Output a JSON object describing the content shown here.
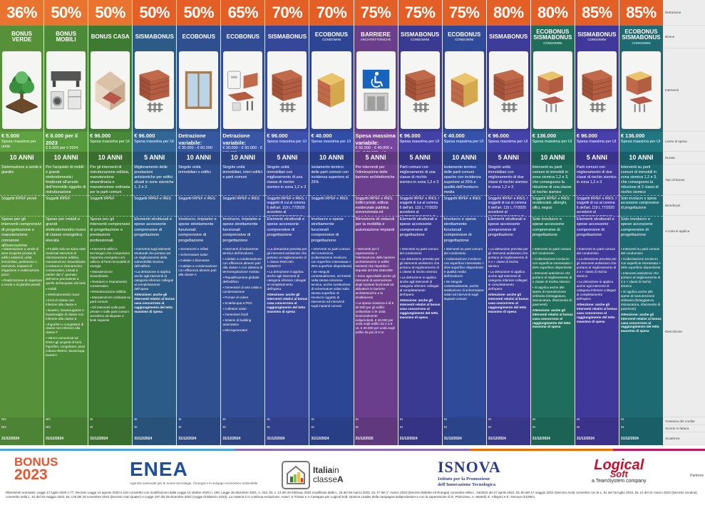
{
  "row_labels": [
    "Detrazione",
    "Bonus",
    "Interventi",
    "Limite di spesa",
    "Durata",
    "Tipo di bonus",
    "Beneficiari",
    "A cosa si applica",
    "Descrizione",
    "Cessione del credito",
    "Sconto in fattura",
    "Scadenza"
  ],
  "columns": [
    {
      "pct": "36%",
      "name": "BONUS VERDE",
      "sub": "",
      "bg": "#56913a",
      "icon": "tree",
      "limit": "€ 5.000",
      "limit_note": "Spesa massima per unità",
      "duration": "10 ANNI",
      "tipo": "Sistemazione a verde e giardini",
      "ben": "Soggetti IRPEF privati",
      "applica": "Spese per gli interventi comprensivi di progettazione e manutenzione connesse all'esecuzione",
      "desc": [
        "Sistemazione a verde di aree scoperte private di edifici esistenti, unità immobiliari, pertinenze o recinzioni, impianti di irrigazione e realizzazione pozzi",
        "Realizzazione di coperture a verde e di giardini pensili"
      ],
      "desc_att": "",
      "cessione": "NO",
      "sconto": "NO",
      "scad": "31/12/2024"
    },
    {
      "pct": "50%",
      "name": "BONUS MOBILI",
      "sub": "",
      "bg": "#4d8a37",
      "icon": "furniture",
      "limit": "€ 8.000 per il 2023",
      "limit_note": "€ 5.000 per il 2024",
      "duration": "10 ANNI",
      "tipo": "Per l'acquisto di mobili e grandi elettrodomestici finalizzati all'arredo dell'immobile oggetto di ristrutturazione",
      "ben": "Soggetti IRPEF",
      "applica": "Spese per mobili e grandi elettrodomestici nuovi di classe energetica elevata",
      "desc": [
        "Fruibile solo se siano stati realizzati interventi di ristrutturazione edilizia, manutenzione straordinaria o restauro e risanamento conservativo, iniziati a partire dal 1° gennaio dell'anno precedente a quello dell'acquisto dei beni",
        "mobili",
        "elettrodomestici nuovi",
        "forni di classe non inferiore alla classe A",
        "lavatrici, lavasciugatrici e lavastoviglie di classe non inferiore alla classe E",
        "frigoriferi e congelatori di classe non inferiore alla classe F",
        "Vanno comunicati ad ENEA gli acquisti di forni, frigoriferi, congelatori, piani cottura elettrici, lavasciuga, lavatrici"
      ],
      "desc_att": "",
      "cessione": "NO",
      "sconto": "NO",
      "scad": "31/12/2024"
    },
    {
      "pct": "50%",
      "name": "BONUS CASA",
      "sub": "",
      "bg": "#3f7a33",
      "icon": "house",
      "limit": "€ 96.000",
      "limit_note": "Spesa massima per UI",
      "duration": "10 ANNI",
      "tipo": "Per gli interventi di ristrutturazione edilizia, manutenzione straordinaria e manutenzione ordinaria per le parti comuni",
      "ben": "Soggetti IRPEF",
      "applica": "Spese per gli interventi comprensivi di progettazione e prestazioni professionali",
      "desc": [
        "Interventi edilizi e tecnologici che comportano risparmio energetico e/o utilizzo di fonti rinnovabili di energia",
        "Manutenzione straordinaria",
        "Restauro e risanamento conservativo",
        "Ristrutturazione edilizia",
        "Manutenzione ordinaria su parti comuni",
        "Gli interventi sulle parti private e sulle parti comuni accedono ad aliquote e limiti separati"
      ],
      "desc_att": "",
      "cessione": "SI",
      "sconto": "SI",
      "scad": "31/12/2024"
    },
    {
      "pct": "50%",
      "name": "SISMABONUS",
      "sub": "",
      "bg": "#2d5b87",
      "icon": "brick",
      "limit": "€ 96.000",
      "limit_note": "Spesa massima per UI",
      "duration": "5 ANNI",
      "tipo": "Miglioramento delle prestazioni antisismiche per edifici situati in zone sismiche 1, 2 e 3",
      "ben": "Soggetti IRPEF e IRES",
      "applica": "Elementi strutturali e spese accessorie comprensive di progettazione",
      "desc": [
        "Interventi sugli elementi strutturali che portano ad un miglioramento della vulnerabilità sismica dell'edificio",
        "La detrazione si applica anche agli interventi di categoria inferiore collegati al completamento dell'opera"
      ],
      "desc_att": "Attenzione: anche gli interventi relativi al bonus casa concorrono al raggiungimento del tetto massimo di spesa",
      "cessione": "SI",
      "sconto": "SI",
      "scad": "31/12/2024"
    },
    {
      "pct": "50%",
      "name": "ECOBONUS",
      "sub": "",
      "bg": "#2f4f8f",
      "icon": "window",
      "limit": "Detrazione variabile:",
      "limit_note": "€ 30.000 - € 60.000",
      "duration": "10 ANNI",
      "tipo": "Singole unità immobiliari o edifici",
      "ben": "Soggetti IRPEF e IRES",
      "applica": "Involucro, impianto e spese strettamente funzionali comprensive di progettazione",
      "desc": [
        "Serramenti e infissi",
        "Schermature solari",
        "Caldaie a biomassa",
        "Caldaie a condensazione con efficienza almeno pari alla classe A"
      ],
      "desc_att": "",
      "cessione": "SI",
      "sconto": "SI",
      "scad": "31/12/2024"
    },
    {
      "pct": "65%",
      "name": "ECOBONUS",
      "sub": "",
      "bg": "#324c94",
      "icon": "boiler",
      "limit": "Detrazione variabile:",
      "limit_note": "€ 30.000 - € 60.000 - € 100.000",
      "duration": "10 ANNI",
      "tipo": "Singole unità immobiliari, interi edifici e parti comuni",
      "ben": "Soggetti IRPEF e IRES",
      "applica": "Involucro, impianto e spese strettamente funzionali comprensive di progettazione",
      "desc": [
        "Interventi di isolamento termico dell'involucro",
        "Caldaie a condensazione con efficienza almeno pari alla classe A con sistema di termoregolazione evoluto",
        "Riqualificazione globale dell'edificio",
        "Generatori di aria calda a condensazione",
        "Pompe di calore",
        "Scaldacqua a PDC",
        "Collettori solari",
        "Generatori ibridi",
        "Sistemi di building automation",
        "Microgeneratori"
      ],
      "desc_att": "",
      "cessione": "SI",
      "sconto": "SI",
      "scad": "31/12/2024"
    },
    {
      "pct": "70%",
      "name": "SISMABONUS",
      "sub": "",
      "bg": "#36479a",
      "icon": "brick",
      "limit": "€ 96.000",
      "limit_note": "Spesa massima per UI",
      "duration": "5 ANNI",
      "tipo": "Singole unità immobiliari con miglioramento di una classe di rischio sismico in zona 1,2 e 3",
      "ben": "Soggetti IRPEF e IRES. I soggetti di cui al comma 6 dell'art. 119 L.77/2020 accedono al SUPERSISMABONUS",
      "applica": "Elementi strutturali e spese accessorie comprensive di progettazione",
      "desc": [
        "La detrazione prevista per gli interventi antisismici che portano al miglioramento di 1 classe RISCHIO SISMICO",
        "La detrazione si applica anche agli interventi di categoria inferiore collegati al completamento dell'opera"
      ],
      "desc_att": "Attenzione: anche gli interventi relativi al bonus casa concorrono al raggiungimento del tetto massimo di spesa",
      "cessione": "SI",
      "sconto": "SI",
      "scad": "31/12/2024"
    },
    {
      "pct": "70%",
      "name": "ECOBONUS",
      "sub": "CONDOMINI",
      "bg": "#2c4595",
      "icon": "insulation",
      "limit": "€ 40.000",
      "limit_note": "Spesa massima per UI",
      "duration": "10 ANNI",
      "tipo": "Isolamento termico delle parti comuni con incidenza superiore al 25%",
      "ben": "Soggetti IRPEF e IRES",
      "applica": "Involucro e spese strettamente funzionali comprensive di progettazione",
      "desc": [
        "Interventi su parti comuni del condominio (coibentazione involucro con superficie interessata > 25% superficie disperdente)",
        "Se eseguiti contestualmente, ed inseriti nella stessa relazione tecnica, anche sostituzione di schermature solari sulla stessa superficie di involucro oggetto di intervento ed interventi sugli impianti comuni"
      ],
      "desc_att": "",
      "cessione": "SI",
      "sconto": "SI",
      "scad": "31/12/2024"
    },
    {
      "pct": "75%",
      "name": "BARRIERE",
      "sub": "ARCHITETTONICHE",
      "bg": "#6b3e8c",
      "icon": "access",
      "limit": "Spesa massima variabile:",
      "limit_note": "€ 50.000 · € 40.000 x UI · € 30.000 x UI",
      "duration": "5 ANNI",
      "tipo": "Per interventi per l'eliminazione delle barriere architettoniche",
      "ben": "Soggetti IRPEF e IRES. Edifici privati, edilizia residenziale pubblica sovvenzionata ed agevolata",
      "applica": "Rimozione di ostacoli per la mobilità e automazione impianti",
      "desc": [
        "Interventi per il superamento e l'eliminazione delle barriere architettoniche in edifici esistenti che rispettino i requisiti del DM 236/1989",
        "Sono agevolabili anche gli interventi di automazione degli impianti funzionali ad abbattere le barriere architettoniche e lo smaltimento",
        "La spesa massima è di € 50.000 per gli edifici unifamiliari o le unità funzionalmente indipendenti, € 40.000 per unità negli edifici da 2 a 8 UI, € 30.000 per unità negli edifici da più di 8 UI"
      ],
      "desc_att": "",
      "cessione": "SI",
      "sconto": "SI",
      "scad": "31/12/2025"
    },
    {
      "pct": "75%",
      "name": "SISMABONUS",
      "sub": "CONDOMINI",
      "bg": "#3b3a93",
      "icon": "brick",
      "limit": "€ 96.000",
      "limit_note": "Spesa massima per UI",
      "duration": "5 ANNI",
      "tipo": "Parti comuni con miglioramento di una classe di rischio sismico in zona 1,2 e 3",
      "ben": "Soggetti IRPEF e IRES. I soggetti di cui al comma 6 dell'art. 119 L.77/2020 accedono al SUPERSISMABONUS",
      "applica": "Elementi strutturali e spese accessorie comprensive di progettazione",
      "desc": [
        "Interventi su parti comuni del condominio",
        "La detrazione prevista per gli interventi antisismici che portano al miglioramento di 1 classe di rischio sismico",
        "La detrazione si applica anche agli interventi di categoria inferiore collegati al completamento dell'opera"
      ],
      "desc_att": "Attenzione: anche gli interventi relativi al bonus casa concorrono al raggiungimento del tetto massimo di spesa",
      "cessione": "SI",
      "sconto": "SI",
      "scad": "31/12/2024"
    },
    {
      "pct": "75%",
      "name": "ECOBONUS",
      "sub": "CONDOMINI",
      "bg": "#2f4a98",
      "icon": "insulation",
      "limit": "€ 40.000",
      "limit_note": "Spesa massima per UI",
      "duration": "10 ANNI",
      "tipo": "Isolamento termico delle parti comuni opache con incidenza superiore al 25% e qualità dell'involucro media",
      "ben": "Soggetti IRPEF e IRES",
      "applica": "Involucro e spese strettamente funzionali comprensive di progettazione",
      "desc": [
        "Interventi su parti comuni del condominio",
        "Coibentazione involucro con superficie interessata > 25% superficie disperdente e qualità media dell'involucro",
        "Se eseguiti contestualmente, anche sostituzione di schermature solari ed interventi sugli impianti comuni"
      ],
      "desc_att": "",
      "cessione": "SI",
      "sconto": "SI",
      "scad": "31/12/2024"
    },
    {
      "pct": "80%",
      "name": "SISMABONUS",
      "sub": "",
      "bg": "#3d3c98",
      "icon": "brick",
      "limit": "€ 96.000",
      "limit_note": "Spesa massima per UI",
      "duration": "5 ANNI",
      "tipo": "Singole unità immobiliari con miglioramento di due classi di rischio sismico in zona 1,2 e 3",
      "ben": "Soggetti IRPEF e IRES. I soggetti di cui al comma 6 dell'art. 119 L.77/2020 accedono al SUPERSISMABONUS",
      "applica": "Elementi strutturali e spese accessorie comprensive di progettazione",
      "desc": [
        "La detrazione prevista per gli interventi antisismici che portano al miglioramento di 2 o + classi di rischio sismico",
        "La detrazione si applica anche agli interventi di categoria inferiore collegati al completamento dell'opera"
      ],
      "desc_att": "Attenzione: anche gli interventi relativi al bonus casa concorrono al raggiungimento del tetto massimo di spesa",
      "cessione": "SI",
      "sconto": "SI",
      "scad": "31/12/2024"
    },
    {
      "pct": "80%",
      "name": "ECOBONUS SISMABONUS",
      "sub": "CONDOMINI",
      "bg": "#1f6e5c",
      "icon": "combo",
      "limit": "€ 136.000",
      "limit_note": "Spesa massima per UI",
      "duration": "10 ANNI",
      "tipo": "Interventi su parti comuni di immobili in zona sismica 1,2 e 3, che conseguono la riduzione di una classe di rischio sismico",
      "ben": "Soggetti IRPEF e IRES: residenziale, alberghi, uffici, negozi",
      "applica": "Solo involucro e spese accessorie comprensive di progettazione",
      "desc": [
        "Interventi su parti comuni del condominio",
        "Coibentazione involucro con superficie interessata > 25% superficie disperdente",
        "Interventi antisismici che portano al miglioramento di 1 classe di rischio sismico",
        "Si applica anche alle spese di manutenzione ordinaria (tinteggiatura, intonacatura, rifacimento di pavimenti)"
      ],
      "desc_att": "Attenzione: anche gli interventi relativi al bonus casa concorrono al raggiungimento del tetto massimo di spesa",
      "cessione": "SI",
      "sconto": "SI",
      "scad": "31/12/2024"
    },
    {
      "pct": "85%",
      "name": "SISMABONUS",
      "sub": "CONDOMINI",
      "bg": "#40389a",
      "icon": "brick",
      "limit": "€ 96.000",
      "limit_note": "Spesa massima per UI",
      "duration": "5 ANNI",
      "tipo": "Parti comuni con miglioramento di due classi di rischio sismico in zona 1,2 e 3",
      "ben": "Soggetti IRPEF e IRES. I soggetti di cui al comma 6 dell'art. 119 L.77/2020 accedono al SUPERSISMABONUS",
      "applica": "Elementi strutturali e spese accessorie comprensive di progettazione",
      "desc": [
        "Interventi su parti comuni del condominio",
        "La detrazione prevista per gli interventi antisismici che portano al miglioramento di 2 o + classi di rischio sismico",
        "La detrazione si applica anche agli interventi di categoria inferiore collegati al completamento dell'opera"
      ],
      "desc_att": "Attenzione: anche gli interventi relativi al bonus casa concorrono al raggiungimento del tetto massimo di spesa",
      "cessione": "SI",
      "sconto": "SI",
      "scad": "31/12/2024"
    },
    {
      "pct": "85%",
      "name": "ECOBONUS SISMABONUS",
      "sub": "CONDOMINI",
      "bg": "#1d6a72",
      "icon": "combo",
      "limit": "€ 136.000",
      "limit_note": "Spesa massima per UI",
      "duration": "10 ANNI",
      "tipo": "Interventi su parti comuni di immobili in zona sismica 1,2 e 3, che conseguono la riduzione di 2 classi di rischio sismico",
      "ben": "Solo involucro e spese accessorie comprensive di progettazione",
      "applica": "Solo involucro e spese accessorie comprensive di progettazione",
      "desc": [
        "Interventi su parti comuni del condominio",
        "Coibentazione involucro con superficie interessata > 25% superficie disperdente",
        "Interventi antisismici che portano al miglioramento di 2 o + classi di rischio sismico",
        "Si applica anche alle spese di manutenzione ordinaria (tinteggiatura, intonacatura, rifacimento di pavimenti)"
      ],
      "desc_att": "Attenzione: anche gli interventi relativi al bonus casa concorrono al raggiungimento del tetto massimo di spesa",
      "cessione": "SI",
      "sconto": "SI",
      "scad": "31/12/2024"
    }
  ],
  "footer": {
    "bonus_logo": "BONUS",
    "bonus_year": "2023",
    "enea": "ENEA",
    "enea_sub": "Agenzia nazionale per le nuove tecnologie, l'energia e lo sviluppo economico sostenibile",
    "italia_1": "Italia",
    "italia_2": "in",
    "italia_3": "classe",
    "italia_4": "A",
    "isnova": "ISNOVA",
    "isnova_sub_1": "Istituto per la Promozione",
    "isnova_sub_2": "dell'Innovazione Tecnologica",
    "logical": "Logical",
    "logical_2": "Soft",
    "logical_sub": "a TeamSystem company",
    "partners_label": "Partners",
    "refs": "Riferimenti normativi: Legge 17 luglio 2020 n.77, Decreto Legge 14 agosto 2020 n.104 convertito con modificazioni dalla Legge 13 ottobre 2020 n. 106, Legge 30 dicembre 2021, n. 234, DL n. 13 del 25 febbraio 2022 modificato dalla L. 25 del 28 marzo 2022, DL 17 del 1° marzo 2022 (Decreto Bollette ed Energia) convertito nella L. 34/2022 del 27 aprile 2022, DL 50 del 17 maggio 2022 (Decreto Aiuti) convertito con la L. 91 del 15 luglio 2022, DL 21 del 21 marzo 2022 (Decreto Ucraina) convertito nella L. 51 del 20 maggio 2022, DL 176 del 18 novembre 2022 (Decreto Aiuti Quater) e Legge 197 del 29 dicembre 2022 (Legge di Bilancio 2023). La materia è in continua evoluzione. Autori: S.Trinato e A.Castagna per Logical Soft, Opinion Leader della campagna ItaliainclasseA e con la supervisione di D. Prisinzano, A. Martelli, E. Allegrini e E. Genova di ENEA."
  },
  "colors": {
    "stripe_1": "#4aa3df",
    "stripe_2": "#2e7d32",
    "stripe_3": "#ef6c00",
    "stripe_4": "#c2185b",
    "label_bg": "#ececec"
  }
}
